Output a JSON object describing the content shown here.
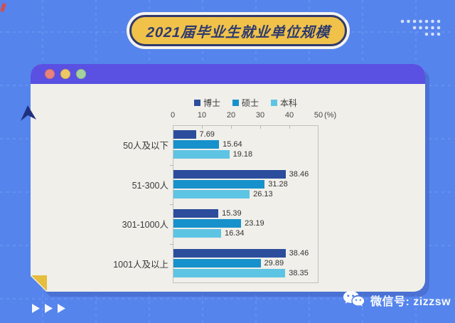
{
  "page": {
    "title_banner": "2021届毕业生就业单位规模",
    "wechat_label": "微信号: zizzsw"
  },
  "window": {
    "traffic_lights": [
      {
        "name": "red",
        "color": "#e9827b"
      },
      {
        "name": "yellow",
        "color": "#eec963"
      },
      {
        "name": "green",
        "color": "#a5d29c"
      }
    ]
  },
  "chart_data": {
    "type": "bar",
    "orientation": "horizontal",
    "title": "2021届毕业生就业单位规模",
    "categories": [
      "50人及以下",
      "51-300人",
      "301-1000人",
      "1001人及以上"
    ],
    "series": [
      {
        "name": "博士",
        "color": "#2b4d9c",
        "values": [
          7.69,
          38.46,
          15.39,
          38.46
        ]
      },
      {
        "name": "硕士",
        "color": "#1791cb",
        "values": [
          15.64,
          31.28,
          23.19,
          29.89
        ]
      },
      {
        "name": "本科",
        "color": "#5ec4e4",
        "values": [
          19.18,
          26.13,
          16.34,
          38.35
        ]
      }
    ],
    "xlim": [
      0,
      50
    ],
    "x_ticks": [
      0,
      10,
      20,
      30,
      40,
      50
    ],
    "x_unit": "(%)",
    "legend_position": "top",
    "grid": false,
    "value_labels": true
  },
  "theme": {
    "background": "#5584ec",
    "card_header": "#5a50e2",
    "card_body": "#f0efea",
    "banner_fill": "#f0c24a",
    "banner_border": "#303a6d",
    "fold_yellow": "#e6bd3c"
  }
}
